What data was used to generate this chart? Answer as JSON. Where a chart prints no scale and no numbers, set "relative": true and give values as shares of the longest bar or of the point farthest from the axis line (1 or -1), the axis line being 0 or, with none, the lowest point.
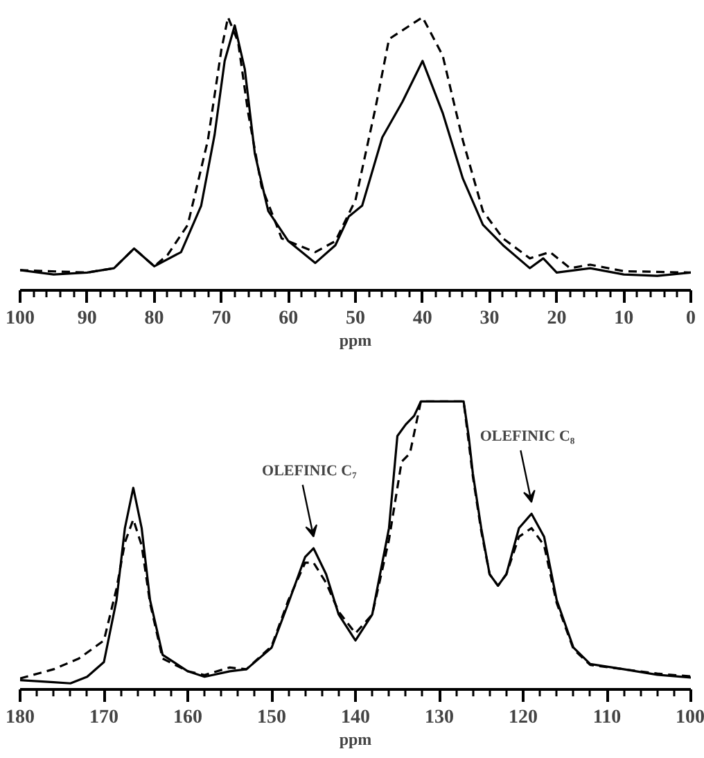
{
  "chart_data": [
    {
      "type": "line",
      "relative": true,
      "xlabel": "ppm",
      "xlim": [
        100,
        0
      ],
      "xticks": [
        100,
        90,
        80,
        70,
        60,
        50,
        40,
        30,
        20,
        10,
        0
      ],
      "series": [
        {
          "color": "#000000",
          "line_style": "solid",
          "x": [
            100,
            95,
            90,
            86,
            83,
            80,
            76,
            73,
            71,
            69.5,
            68,
            66.5,
            65,
            63,
            60,
            56,
            53,
            51,
            49,
            46,
            43,
            40,
            37,
            34,
            31,
            28,
            24,
            22,
            20,
            15,
            10,
            5,
            0
          ],
          "values": [
            0.074,
            0.058,
            0.065,
            0.081,
            0.153,
            0.088,
            0.14,
            0.31,
            0.57,
            0.84,
            0.97,
            0.81,
            0.5,
            0.29,
            0.18,
            0.1,
            0.165,
            0.27,
            0.31,
            0.56,
            0.69,
            0.84,
            0.65,
            0.41,
            0.24,
            0.165,
            0.081,
            0.117,
            0.065,
            0.081,
            0.058,
            0.053,
            0.065
          ]
        },
        {
          "color": "#000000",
          "line_style": "dashed",
          "x": [
            100,
            90,
            86,
            83,
            80,
            78,
            75,
            72,
            70,
            69,
            67.5,
            66,
            64,
            61,
            56,
            53,
            50,
            47,
            45,
            40,
            37,
            34,
            31,
            28,
            24,
            21,
            18,
            15,
            10,
            0
          ],
          "values": [
            0.074,
            0.065,
            0.081,
            0.153,
            0.088,
            0.13,
            0.24,
            0.55,
            0.88,
            1.0,
            0.91,
            0.65,
            0.38,
            0.19,
            0.14,
            0.18,
            0.33,
            0.67,
            0.92,
            1.0,
            0.86,
            0.55,
            0.29,
            0.19,
            0.117,
            0.14,
            0.081,
            0.094,
            0.07,
            0.065
          ]
        }
      ]
    },
    {
      "type": "line",
      "relative": true,
      "xlabel": "ppm",
      "xlim": [
        180,
        100
      ],
      "xticks": [
        180,
        170,
        160,
        150,
        140,
        130,
        120,
        110,
        100
      ],
      "annotations": [
        {
          "text": "OLEFINIC C₇",
          "x": 145,
          "y": 0.49
        },
        {
          "text": "OLEFINIC C₈",
          "x": 119,
          "y": 0.61
        }
      ],
      "series": [
        {
          "color": "#000000",
          "line_style": "solid",
          "x": [
            180,
            176,
            174,
            172,
            170,
            168.5,
            167.5,
            166.5,
            165.5,
            164.5,
            163,
            160,
            158,
            155,
            153,
            150,
            148,
            146,
            145,
            143.5,
            142,
            140,
            138,
            136,
            135,
            134,
            133,
            132.2,
            127.1,
            126.5,
            126,
            125,
            124,
            123,
            122,
            120.5,
            119,
            117.5,
            116,
            114,
            112,
            108,
            104,
            100
          ],
          "values": [
            0.032,
            0.025,
            0.021,
            0.044,
            0.095,
            0.31,
            0.56,
            0.7,
            0.56,
            0.31,
            0.12,
            0.063,
            0.044,
            0.063,
            0.07,
            0.145,
            0.3,
            0.46,
            0.49,
            0.4,
            0.26,
            0.17,
            0.26,
            0.56,
            0.88,
            0.92,
            0.95,
            1.0,
            1.0,
            0.88,
            0.75,
            0.56,
            0.4,
            0.36,
            0.4,
            0.56,
            0.61,
            0.53,
            0.31,
            0.145,
            0.088,
            0.07,
            0.051,
            0.041
          ]
        },
        {
          "color": "#000000",
          "line_style": "dashed",
          "x": [
            180,
            176,
            173,
            170,
            168.5,
            167.5,
            166.5,
            165.5,
            164.5,
            163,
            160,
            158,
            155,
            153,
            150,
            148,
            146,
            145,
            143.5,
            142,
            140,
            138,
            136,
            134.5,
            133.5,
            132.2,
            127.1,
            126.5,
            126,
            125,
            124,
            123,
            122,
            120.5,
            119,
            117.5,
            116,
            114,
            112,
            108,
            104,
            100
          ],
          "values": [
            0.038,
            0.07,
            0.107,
            0.17,
            0.35,
            0.51,
            0.59,
            0.5,
            0.3,
            0.107,
            0.063,
            0.05,
            0.076,
            0.07,
            0.15,
            0.31,
            0.44,
            0.44,
            0.37,
            0.27,
            0.195,
            0.26,
            0.52,
            0.79,
            0.82,
            1.0,
            1.0,
            0.86,
            0.74,
            0.55,
            0.4,
            0.36,
            0.4,
            0.53,
            0.56,
            0.5,
            0.3,
            0.14,
            0.085,
            0.07,
            0.055,
            0.045
          ]
        }
      ]
    }
  ]
}
